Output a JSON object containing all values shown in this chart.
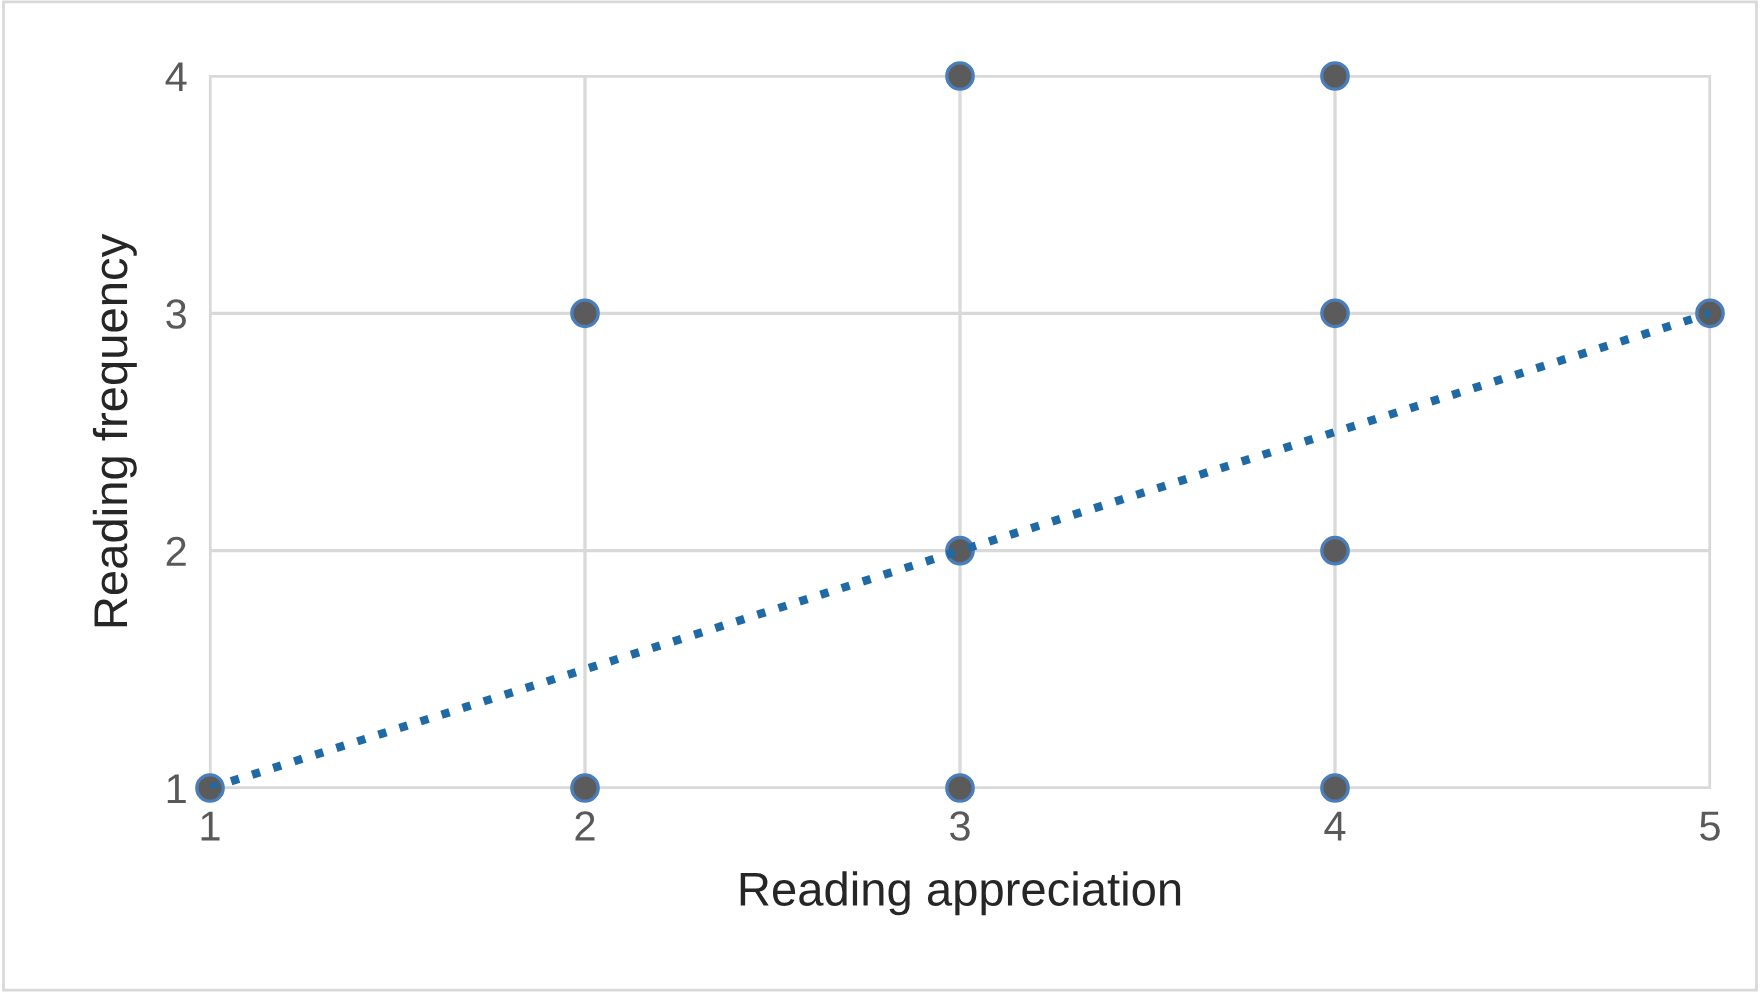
{
  "chart_data": {
    "type": "scatter",
    "xlabel": "Reading appreciation",
    "ylabel": "Reading frequency",
    "xlim": [
      1,
      5
    ],
    "ylim": [
      1,
      4
    ],
    "xticks": [
      1,
      2,
      3,
      4,
      5
    ],
    "yticks": [
      1,
      2,
      3,
      4
    ],
    "grid": true,
    "series": [
      {
        "color": "#5b5b5b",
        "marker": "circle",
        "x": [
          1,
          2,
          2,
          3,
          3,
          3,
          4,
          4,
          4,
          4,
          5
        ],
        "values": [
          1,
          3,
          1,
          4,
          2,
          1,
          4,
          3,
          2,
          1,
          3
        ]
      },
      {
        "type": "line",
        "color": "#1f6aa5",
        "line_style": "dotted",
        "x": [
          1,
          5
        ],
        "values": [
          1,
          3
        ]
      }
    ]
  }
}
